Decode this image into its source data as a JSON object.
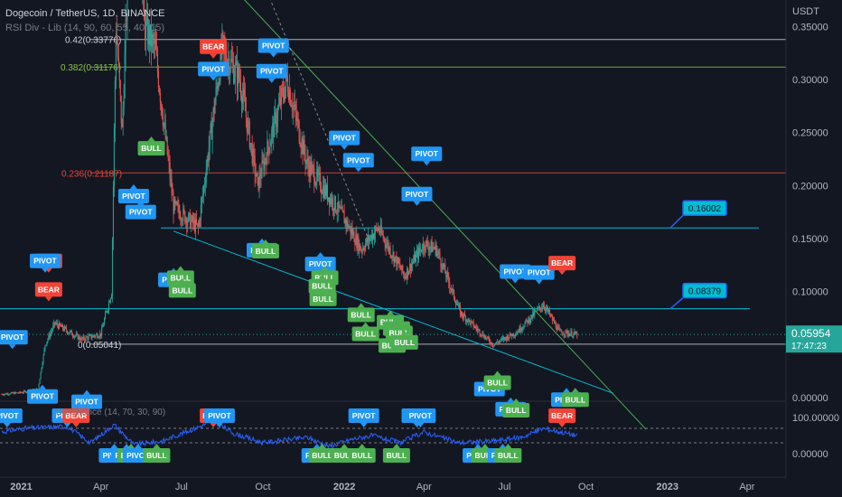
{
  "header": {
    "title": "Dogecoin / TetherUS, 1D, BINANCE",
    "indicator": "RSI Div - Lib (14, 90, 60, 55, 40, 15)",
    "rsi_label": "Dominance (14, 70, 30, 90)"
  },
  "colors": {
    "bg": "#131722",
    "candle_up": "#26a69a",
    "candle_down": "#ef5350",
    "pivot": "#2196f3",
    "bull": "#4caf50",
    "bear": "#f44336",
    "fib_042": "#d1d4dc",
    "fib_0382": "#8bc34a",
    "fib_0236": "#f44336",
    "trend_green": "#4caf50",
    "trend_cyan": "#00bcd4",
    "rsi_line": "#2962ff",
    "price_tag": "#26a69a"
  },
  "price_axis": {
    "unit": "USDT",
    "ticks": [
      "0.35000",
      "0.30000",
      "0.25000",
      "0.20000",
      "0.15000",
      "0.10000",
      "0.05000",
      "0.00000"
    ]
  },
  "rsi_axis": {
    "ticks": [
      "100.00000",
      "0.00000"
    ]
  },
  "time_axis": {
    "ticks": [
      "2021",
      "Apr",
      "Jul",
      "Oct",
      "2022",
      "Apr",
      "Jul",
      "Oct",
      "2023",
      "Apr"
    ],
    "bold": [
      "2021",
      "2022",
      "2023"
    ]
  },
  "fib_levels": [
    {
      "label": "0.42(0.33776)",
      "value": 0.33776,
      "color_key": "fib_042"
    },
    {
      "label": "0.382(0.31176)",
      "value": 0.31176,
      "color_key": "fib_0382"
    },
    {
      "label": "0.236(0.21187)",
      "value": 0.21187,
      "color_key": "fib_0236"
    },
    {
      "label": "0(0.05041)",
      "value": 0.05041,
      "color_key": "fib_042"
    }
  ],
  "levels": [
    {
      "label": "0.16002",
      "value": 0.16002
    },
    {
      "label": "0.08379",
      "value": 0.08379
    }
  ],
  "current_price": {
    "value": "0.05954",
    "countdown": "17:47:23"
  },
  "chart_data": {
    "type": "candlestick",
    "title": "Dogecoin / TetherUS, 1D, BINANCE",
    "ylabel": "USDT",
    "ylim": [
      0.0,
      0.375
    ],
    "xlim": [
      "2020-12-08",
      "2023-05-15"
    ],
    "price_path": [
      [
        "2020-12-10",
        0.0032
      ],
      [
        "2020-12-31",
        0.0047
      ],
      [
        "2021-01-20",
        0.008
      ],
      [
        "2021-01-28",
        0.05
      ],
      [
        "2021-02-08",
        0.07
      ],
      [
        "2021-03-10",
        0.055
      ],
      [
        "2021-04-01",
        0.06
      ],
      [
        "2021-04-13",
        0.1
      ],
      [
        "2021-04-18",
        0.35
      ],
      [
        "2021-04-25",
        0.25
      ],
      [
        "2021-05-08",
        0.55
      ],
      [
        "2021-05-20",
        0.35
      ],
      [
        "2021-06-01",
        0.33
      ],
      [
        "2021-06-22",
        0.18
      ],
      [
        "2021-07-20",
        0.16
      ],
      [
        "2021-08-16",
        0.33
      ],
      [
        "2021-09-05",
        0.3
      ],
      [
        "2021-09-25",
        0.2
      ],
      [
        "2021-10-28",
        0.3
      ],
      [
        "2021-11-20",
        0.22
      ],
      [
        "2021-12-31",
        0.17
      ],
      [
        "2022-01-20",
        0.14
      ],
      [
        "2022-02-08",
        0.16
      ],
      [
        "2022-03-10",
        0.115
      ],
      [
        "2022-04-01",
        0.145
      ],
      [
        "2022-04-15",
        0.14
      ],
      [
        "2022-05-12",
        0.08
      ],
      [
        "2022-06-18",
        0.05
      ],
      [
        "2022-07-15",
        0.062
      ],
      [
        "2022-08-14",
        0.088
      ],
      [
        "2022-09-01",
        0.062
      ],
      [
        "2022-09-21",
        0.0595
      ]
    ],
    "signals": [
      {
        "type": "PIVOT",
        "date": "2020-12-22",
        "price": 0.045,
        "pos": "above"
      },
      {
        "type": "PIVOT",
        "date": "2021-01-25",
        "price": 0.013,
        "pos": "below"
      },
      {
        "type": "BEAR",
        "date": "2021-02-01",
        "price": 0.117,
        "pos": "above"
      },
      {
        "type": "PIVOT",
        "date": "2021-01-28",
        "price": 0.117,
        "pos": "above"
      },
      {
        "type": "BEAR",
        "date": "2021-02-01",
        "price": 0.09,
        "pos": "above"
      },
      {
        "type": "PIVOT",
        "date": "2021-03-16",
        "price": 0.008,
        "pos": "below"
      },
      {
        "type": "PIVOT",
        "date": "2021-05-08",
        "price": 0.202,
        "pos": "below"
      },
      {
        "type": "PIVOT",
        "date": "2021-05-16",
        "price": 0.187,
        "pos": "below"
      },
      {
        "type": "BULL",
        "date": "2021-05-28",
        "price": 0.247,
        "pos": "below"
      },
      {
        "type": "PIVOT",
        "date": "2021-06-22",
        "price": 0.123,
        "pos": "below"
      },
      {
        "type": "BULL",
        "date": "2021-06-30",
        "price": 0.125,
        "pos": "below"
      },
      {
        "type": "BULL",
        "date": "2021-07-02",
        "price": 0.113,
        "pos": "below"
      },
      {
        "type": "BEAR",
        "date": "2021-08-06",
        "price": 0.319,
        "pos": "above"
      },
      {
        "type": "PIVOT",
        "date": "2021-08-06",
        "price": 0.298,
        "pos": "above"
      },
      {
        "type": "PIVOT",
        "date": "2021-10-13",
        "price": 0.32,
        "pos": "above"
      },
      {
        "type": "PIVOT",
        "date": "2021-10-11",
        "price": 0.296,
        "pos": "above"
      },
      {
        "type": "PIVOT",
        "date": "2021-09-30",
        "price": 0.151,
        "pos": "below"
      },
      {
        "type": "BULL",
        "date": "2021-10-04",
        "price": 0.15,
        "pos": "below"
      },
      {
        "type": "PIVOT",
        "date": "2021-12-05",
        "price": 0.138,
        "pos": "below"
      },
      {
        "type": "BULL",
        "date": "2021-12-10",
        "price": 0.125,
        "pos": "below"
      },
      {
        "type": "BULL",
        "date": "2021-12-07",
        "price": 0.117,
        "pos": "below"
      },
      {
        "type": "BULL",
        "date": "2021-12-08",
        "price": 0.105,
        "pos": "below"
      },
      {
        "type": "BULL",
        "date": "2022-01-20",
        "price": 0.09,
        "pos": "below"
      },
      {
        "type": "BULL",
        "date": "2022-01-25",
        "price": 0.072,
        "pos": "below"
      },
      {
        "type": "BULL",
        "date": "2022-02-22",
        "price": 0.083,
        "pos": "below"
      },
      {
        "type": "BULL",
        "date": "2022-03-01",
        "price": 0.077,
        "pos": "below"
      },
      {
        "type": "BULL",
        "date": "2022-03-04",
        "price": 0.073,
        "pos": "below"
      },
      {
        "type": "BULL",
        "date": "2022-02-24",
        "price": 0.061,
        "pos": "below"
      },
      {
        "type": "BULL",
        "date": "2022-03-10",
        "price": 0.064,
        "pos": "below"
      },
      {
        "type": "PIVOT",
        "date": "2022-01-01",
        "price": 0.233,
        "pos": "above"
      },
      {
        "type": "PIVOT",
        "date": "2022-01-17",
        "price": 0.212,
        "pos": "above"
      },
      {
        "type": "PIVOT",
        "date": "2022-04-04",
        "price": 0.218,
        "pos": "above"
      },
      {
        "type": "PIVOT",
        "date": "2022-03-24",
        "price": 0.18,
        "pos": "above"
      },
      {
        "type": "PIVOT",
        "date": "2022-06-14",
        "price": 0.02,
        "pos": "below"
      },
      {
        "type": "BULL",
        "date": "2022-06-23",
        "price": 0.026,
        "pos": "below"
      },
      {
        "type": "PIVOT",
        "date": "2022-07-08",
        "price": 0.001,
        "pos": "below"
      },
      {
        "type": "BULL",
        "date": "2022-07-14",
        "price": 0.0,
        "pos": "below"
      },
      {
        "type": "PIVOT",
        "date": "2022-07-13",
        "price": 0.107,
        "pos": "above"
      },
      {
        "type": "PIVOT",
        "date": "2022-08-09",
        "price": 0.106,
        "pos": "above"
      },
      {
        "type": "BEAR",
        "date": "2022-09-04",
        "price": 0.115,
        "pos": "above"
      },
      {
        "type": "PIVOT",
        "date": "2022-09-09",
        "price": 0.01,
        "pos": "below"
      },
      {
        "type": "BULL",
        "date": "2022-09-19",
        "price": 0.01,
        "pos": "below"
      }
    ],
    "rsi_signals": [
      {
        "type": "PIVOT",
        "date": "2020-12-16",
        "pos": "above"
      },
      {
        "type": "PIVOT",
        "date": "2021-02-22",
        "pos": "above"
      },
      {
        "type": "BEAR",
        "date": "2021-03-04",
        "pos": "above"
      },
      {
        "type": "PIVOT",
        "date": "2021-04-16",
        "pos": "below"
      },
      {
        "type": "PIVOT",
        "date": "2021-04-30",
        "pos": "below"
      },
      {
        "type": "BULL",
        "date": "2021-05-05",
        "pos": "below"
      },
      {
        "type": "PIVOT",
        "date": "2021-05-13",
        "pos": "below"
      },
      {
        "type": "BULL",
        "date": "2021-06-03",
        "pos": "below"
      },
      {
        "type": "BEAR",
        "date": "2021-08-06",
        "pos": "above"
      },
      {
        "type": "PIVOT",
        "date": "2021-08-13",
        "pos": "above"
      },
      {
        "type": "PIVOT",
        "date": "2021-12-01",
        "pos": "below"
      },
      {
        "type": "BULL",
        "date": "2021-12-07",
        "pos": "below"
      },
      {
        "type": "BULL",
        "date": "2022-01-01",
        "pos": "below"
      },
      {
        "type": "BULL",
        "date": "2022-01-21",
        "pos": "below"
      },
      {
        "type": "BULL",
        "date": "2022-03-01",
        "pos": "below"
      },
      {
        "type": "PIVOT",
        "date": "2022-01-23",
        "pos": "above"
      },
      {
        "type": "PIVOT",
        "date": "2022-03-24",
        "pos": "above"
      },
      {
        "type": "PIVOT",
        "date": "2022-03-28",
        "pos": "above"
      },
      {
        "type": "PIVOT",
        "date": "2022-06-01",
        "pos": "below"
      },
      {
        "type": "BULL",
        "date": "2022-06-09",
        "pos": "below"
      },
      {
        "type": "PIVOT",
        "date": "2022-06-29",
        "pos": "below"
      },
      {
        "type": "BULL",
        "date": "2022-07-05",
        "pos": "below"
      },
      {
        "type": "BEAR",
        "date": "2022-09-04",
        "pos": "above"
      }
    ],
    "rsi": {
      "ylim": [
        -45,
        135
      ],
      "upper": 70,
      "lower": 30,
      "path": [
        [
          "2020-12-10",
          60
        ],
        [
          "2021-01-05",
          70
        ],
        [
          "2021-02-22",
          75
        ],
        [
          "2021-03-20",
          30
        ],
        [
          "2021-04-16",
          80
        ],
        [
          "2021-05-08",
          25
        ],
        [
          "2021-06-10",
          35
        ],
        [
          "2021-08-06",
          90
        ],
        [
          "2021-08-30",
          55
        ],
        [
          "2021-10-01",
          30
        ],
        [
          "2021-11-20",
          45
        ],
        [
          "2021-12-15",
          20
        ],
        [
          "2022-01-10",
          40
        ],
        [
          "2022-02-01",
          50
        ],
        [
          "2022-03-05",
          30
        ],
        [
          "2022-04-01",
          60
        ],
        [
          "2022-05-10",
          30
        ],
        [
          "2022-06-18",
          35
        ],
        [
          "2022-07-20",
          45
        ],
        [
          "2022-08-14",
          70
        ],
        [
          "2022-09-21",
          50
        ]
      ]
    },
    "trendlines": [
      {
        "color_key": "trend_green",
        "style": "solid",
        "points": [
          [
            "2021-04-01",
            0.52
          ],
          [
            "2022-12-08",
            -0.03
          ]
        ]
      },
      {
        "color_key": "trend_cyan",
        "style": "solid",
        "points": [
          [
            "2021-06-22",
            0.157
          ],
          [
            "2022-11-01",
            0.004
          ]
        ]
      },
      {
        "color_key": "fib_042",
        "style": "dashed",
        "points": [
          [
            "2021-09-20",
            0.415
          ],
          [
            "2022-01-28",
            0.15
          ]
        ]
      }
    ]
  }
}
